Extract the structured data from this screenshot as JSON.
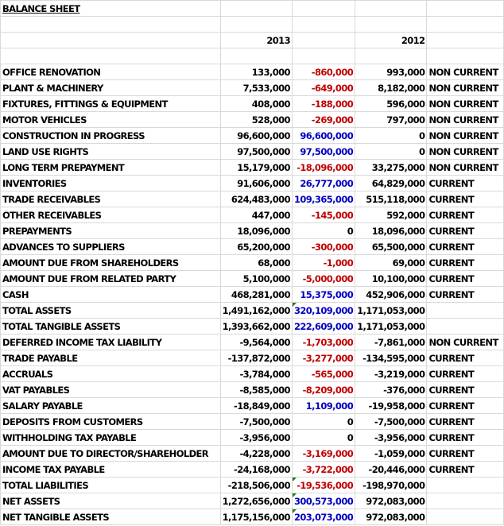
{
  "title": "BALANCE SHEET",
  "headers": {
    "year1": "2013",
    "year2": "2012"
  },
  "colors": {
    "negative": "#c00000",
    "positive": "#0000c0"
  },
  "rows": [
    {
      "label": "OFFICE RENOVATION",
      "y2013": "133,000",
      "change": "-860,000",
      "c": "red",
      "y2012": "993,000",
      "cls": "NON CURRENT"
    },
    {
      "label": "PLANT & MACHINERY",
      "y2013": "7,533,000",
      "change": "-649,000",
      "c": "red",
      "y2012": "8,182,000",
      "cls": "NON CURRENT"
    },
    {
      "label": "FIXTURES, FITTINGS & EQUIPMENT",
      "y2013": "408,000",
      "change": "-188,000",
      "c": "red",
      "y2012": "596,000",
      "cls": "NON CURRENT"
    },
    {
      "label": "MOTOR VEHICLES",
      "y2013": "528,000",
      "change": "-269,000",
      "c": "red",
      "y2012": "797,000",
      "cls": "NON CURRENT"
    },
    {
      "label": "CONSTRUCTION IN PROGRESS",
      "y2013": "96,600,000",
      "change": "96,600,000",
      "c": "blue",
      "y2012": "0",
      "cls": "NON CURRENT"
    },
    {
      "label": "LAND USE RIGHTS",
      "y2013": "97,500,000",
      "change": "97,500,000",
      "c": "blue",
      "y2012": "0",
      "cls": "NON CURRENT"
    },
    {
      "label": "LONG TERM PREPAYMENT",
      "y2013": "15,179,000",
      "change": "-18,096,000",
      "c": "red",
      "y2012": "33,275,000",
      "cls": "NON CURRENT"
    },
    {
      "label": "INVENTORIES",
      "y2013": "91,606,000",
      "change": "26,777,000",
      "c": "blue",
      "y2012": "64,829,000",
      "cls": "CURRENT"
    },
    {
      "label": "TRADE RECEIVABLES",
      "y2013": "624,483,000",
      "change": "109,365,000",
      "c": "blue",
      "y2012": "515,118,000",
      "cls": "CURRENT"
    },
    {
      "label": "OTHER RECEIVABLES",
      "y2013": "447,000",
      "change": "-145,000",
      "c": "red",
      "y2012": "592,000",
      "cls": "CURRENT"
    },
    {
      "label": "PREPAYMENTS",
      "y2013": "18,096,000",
      "change": "0",
      "c": "",
      "y2012": "18,096,000",
      "cls": "CURRENT"
    },
    {
      "label": "ADVANCES TO SUPPLIERS",
      "y2013": "65,200,000",
      "change": "-300,000",
      "c": "red",
      "y2012": "65,500,000",
      "cls": "CURRENT"
    },
    {
      "label": "AMOUNT DUE FROM SHAREHOLDERS",
      "y2013": "68,000",
      "change": "-1,000",
      "c": "red",
      "y2012": "69,000",
      "cls": "CURRENT"
    },
    {
      "label": "AMOUNT DUE FROM RELATED PARTY",
      "y2013": "5,100,000",
      "change": "-5,000,000",
      "c": "red",
      "y2012": "10,100,000",
      "cls": "CURRENT"
    },
    {
      "label": "CASH",
      "y2013": "468,281,000",
      "change": "15,375,000",
      "c": "blue",
      "y2012": "452,906,000",
      "cls": "CURRENT"
    },
    {
      "label": "TOTAL ASSETS",
      "y2013": "1,491,162,000",
      "change": "320,109,000",
      "c": "blue",
      "y2012": "1,171,053,000",
      "cls": "",
      "flag": true
    },
    {
      "label": "TOTAL TANGIBLE ASSETS",
      "y2013": "1,393,662,000",
      "change": "222,609,000",
      "c": "blue",
      "y2012": "1,171,053,000",
      "cls": ""
    },
    {
      "label": "DEFERRED INCOME TAX LIABILITY",
      "y2013": "-9,564,000",
      "change": "-1,703,000",
      "c": "red",
      "y2012": "-7,861,000",
      "cls": "NON CURRENT"
    },
    {
      "label": "TRADE PAYABLE",
      "y2013": "-137,872,000",
      "change": "-3,277,000",
      "c": "red",
      "y2012": "-134,595,000",
      "cls": "CURRENT"
    },
    {
      "label": "ACCRUALS",
      "y2013": "-3,784,000",
      "change": "-565,000",
      "c": "red",
      "y2012": "-3,219,000",
      "cls": "CURRENT"
    },
    {
      "label": "VAT PAYABLES",
      "y2013": "-8,585,000",
      "change": "-8,209,000",
      "c": "red",
      "y2012": "-376,000",
      "cls": "CURRENT"
    },
    {
      "label": "SALARY PAYABLE",
      "y2013": "-18,849,000",
      "change": "1,109,000",
      "c": "blue",
      "y2012": "-19,958,000",
      "cls": "CURRENT"
    },
    {
      "label": "DEPOSITS FROM CUSTOMERS",
      "y2013": "-7,500,000",
      "change": "0",
      "c": "",
      "y2012": "-7,500,000",
      "cls": "CURRENT"
    },
    {
      "label": "WITHHOLDING TAX PAYABLE",
      "y2013": "-3,956,000",
      "change": "0",
      "c": "",
      "y2012": "-3,956,000",
      "cls": "CURRENT"
    },
    {
      "label": "AMOUNT DUE TO DIRECTOR/SHAREHOLDER",
      "y2013": "-4,228,000",
      "change": "-3,169,000",
      "c": "red",
      "y2012": "-1,059,000",
      "cls": "CURRENT"
    },
    {
      "label": "INCOME TAX PAYABLE",
      "y2013": "-24,168,000",
      "change": "-3,722,000",
      "c": "red",
      "y2012": "-20,446,000",
      "cls": "CURRENT"
    },
    {
      "label": "TOTAL LIABILITIES",
      "y2013": "-218,506,000",
      "change": "-19,536,000",
      "c": "red",
      "y2012": "-198,970,000",
      "cls": "",
      "flag": true
    },
    {
      "label": "NET ASSETS",
      "y2013": "1,272,656,000",
      "change": "300,573,000",
      "c": "blue",
      "y2012": "972,083,000",
      "cls": "",
      "flag": true
    },
    {
      "label": "NET TANGIBLE ASSETS",
      "y2013": "1,175,156,000",
      "change": "203,073,000",
      "c": "blue",
      "y2012": "972,083,000",
      "cls": "",
      "flag": true
    }
  ]
}
